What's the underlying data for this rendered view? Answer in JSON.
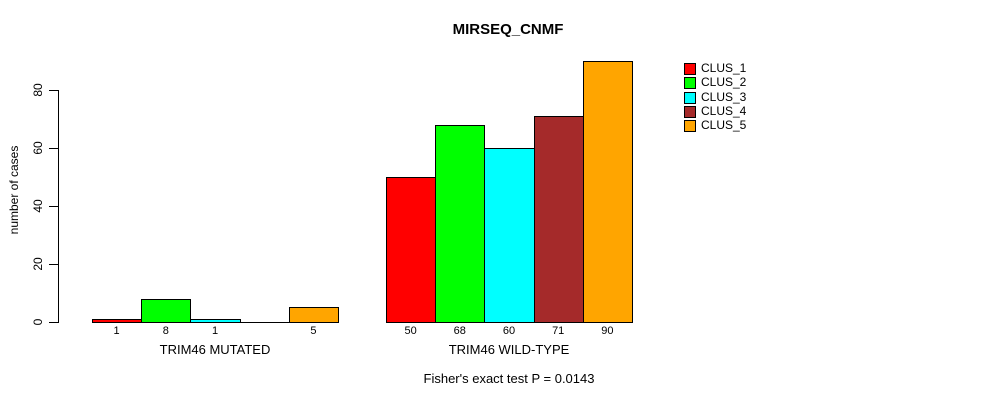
{
  "chart_data": {
    "type": "bar",
    "title": "MIRSEQ_CNMF",
    "subtitle": "Fisher's exact test P = 0.0143",
    "ylabel": "number of cases",
    "xlabel": "",
    "ylim": [
      0,
      90
    ],
    "yticks": [
      0,
      20,
      40,
      60,
      80
    ],
    "grid": false,
    "legend_position": "topright",
    "bar_value_labels_shown": true,
    "series": [
      {
        "name": "CLUS_1",
        "color": "#ff0000"
      },
      {
        "name": "CLUS_2",
        "color": "#00ff00"
      },
      {
        "name": "CLUS_3",
        "color": "#00ffff"
      },
      {
        "name": "CLUS_4",
        "color": "#a52a2a"
      },
      {
        "name": "CLUS_5",
        "color": "#ffa500"
      }
    ],
    "groups": [
      {
        "label": "TRIM46 MUTATED",
        "values": [
          1,
          8,
          1,
          0,
          5
        ]
      },
      {
        "label": "TRIM46 WILD-TYPE",
        "values": [
          50,
          68,
          60,
          71,
          90
        ]
      }
    ]
  }
}
